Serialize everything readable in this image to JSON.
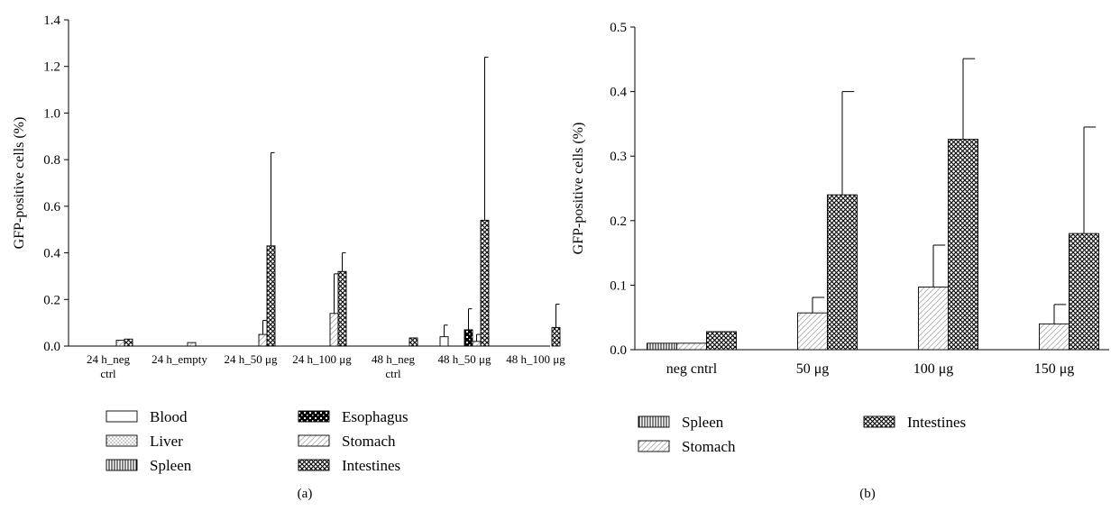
{
  "chart_data": [
    {
      "type": "bar",
      "panel_label": "(a)",
      "ylabel": "GFP-positive cells (%)",
      "ylim": [
        0,
        1.4
      ],
      "yticks": [
        "0.0",
        "0.2",
        "0.4",
        "0.6",
        "0.8",
        "1.0",
        "1.2",
        "1.4"
      ],
      "categories": [
        "24 h_neg ctrl",
        "24 h_empty",
        "24 h_50 μg",
        "24 h_100 μg",
        "48 h_neg ctrl",
        "48 h_50 μg",
        "48 h_100 μg"
      ],
      "category_lines": [
        [
          "24 h_neg",
          "ctrl"
        ],
        [
          "24 h_empty"
        ],
        [
          "24 h_50 μg"
        ],
        [
          "24 h_100 μg"
        ],
        [
          "48 h_neg",
          "ctrl"
        ],
        [
          "48 h_50 μg"
        ],
        [
          "48 h_100 μg"
        ]
      ],
      "legend_columns": 2,
      "series": [
        {
          "name": "Blood",
          "pattern": "blood",
          "values": [
            0,
            0,
            0,
            0,
            0,
            0.04,
            0
          ],
          "errors": [
            0,
            0,
            0,
            0,
            0,
            0.05,
            0
          ]
        },
        {
          "name": "Liver",
          "pattern": "liver",
          "values": [
            0,
            0,
            0,
            0,
            0,
            0,
            0
          ],
          "errors": [
            0,
            0,
            0,
            0,
            0,
            0,
            0
          ]
        },
        {
          "name": "Spleen",
          "pattern": "spleen",
          "values": [
            0,
            0,
            0,
            0,
            0,
            0,
            0
          ],
          "errors": [
            0,
            0,
            0,
            0,
            0,
            0,
            0
          ]
        },
        {
          "name": "Esophagus",
          "pattern": "esophagus",
          "values": [
            0,
            0,
            0,
            0,
            0,
            0.07,
            0
          ],
          "errors": [
            0,
            0,
            0,
            0,
            0,
            0.09,
            0
          ]
        },
        {
          "name": "Stomach",
          "pattern": "stomach",
          "values": [
            0.025,
            0.015,
            0.05,
            0.14,
            0,
            0.02,
            0
          ],
          "errors": [
            0,
            0,
            0.06,
            0.17,
            0,
            0.03,
            0
          ]
        },
        {
          "name": "Intestines",
          "pattern": "intestines",
          "values": [
            0.03,
            0,
            0.43,
            0.32,
            0.035,
            0.54,
            0.08
          ],
          "errors": [
            0,
            0,
            0.4,
            0.08,
            0,
            0.7,
            0.1
          ]
        }
      ]
    },
    {
      "type": "bar",
      "panel_label": "(b)",
      "ylabel": "GFP-positive cells (%)",
      "ylim": [
        0,
        0.5
      ],
      "yticks": [
        "0.0",
        "0.1",
        "0.2",
        "0.3",
        "0.4",
        "0.5"
      ],
      "categories": [
        "neg cntrl",
        "50 μg",
        "100 μg",
        "150 μg"
      ],
      "legend_columns": 2,
      "series": [
        {
          "name": "Spleen",
          "pattern": "spleen",
          "values": [
            0.01,
            0,
            0,
            0
          ],
          "errors": [
            0,
            0,
            0,
            0
          ]
        },
        {
          "name": "Stomach",
          "pattern": "stomach",
          "values": [
            0.01,
            0.057,
            0.097,
            0.04
          ],
          "errors": [
            0,
            0.024,
            0.065,
            0.03
          ]
        },
        {
          "name": "Intestines",
          "pattern": "intestines",
          "values": [
            0.028,
            0.24,
            0.326,
            0.18
          ],
          "errors": [
            0,
            0.16,
            0.125,
            0.165
          ]
        }
      ]
    }
  ]
}
